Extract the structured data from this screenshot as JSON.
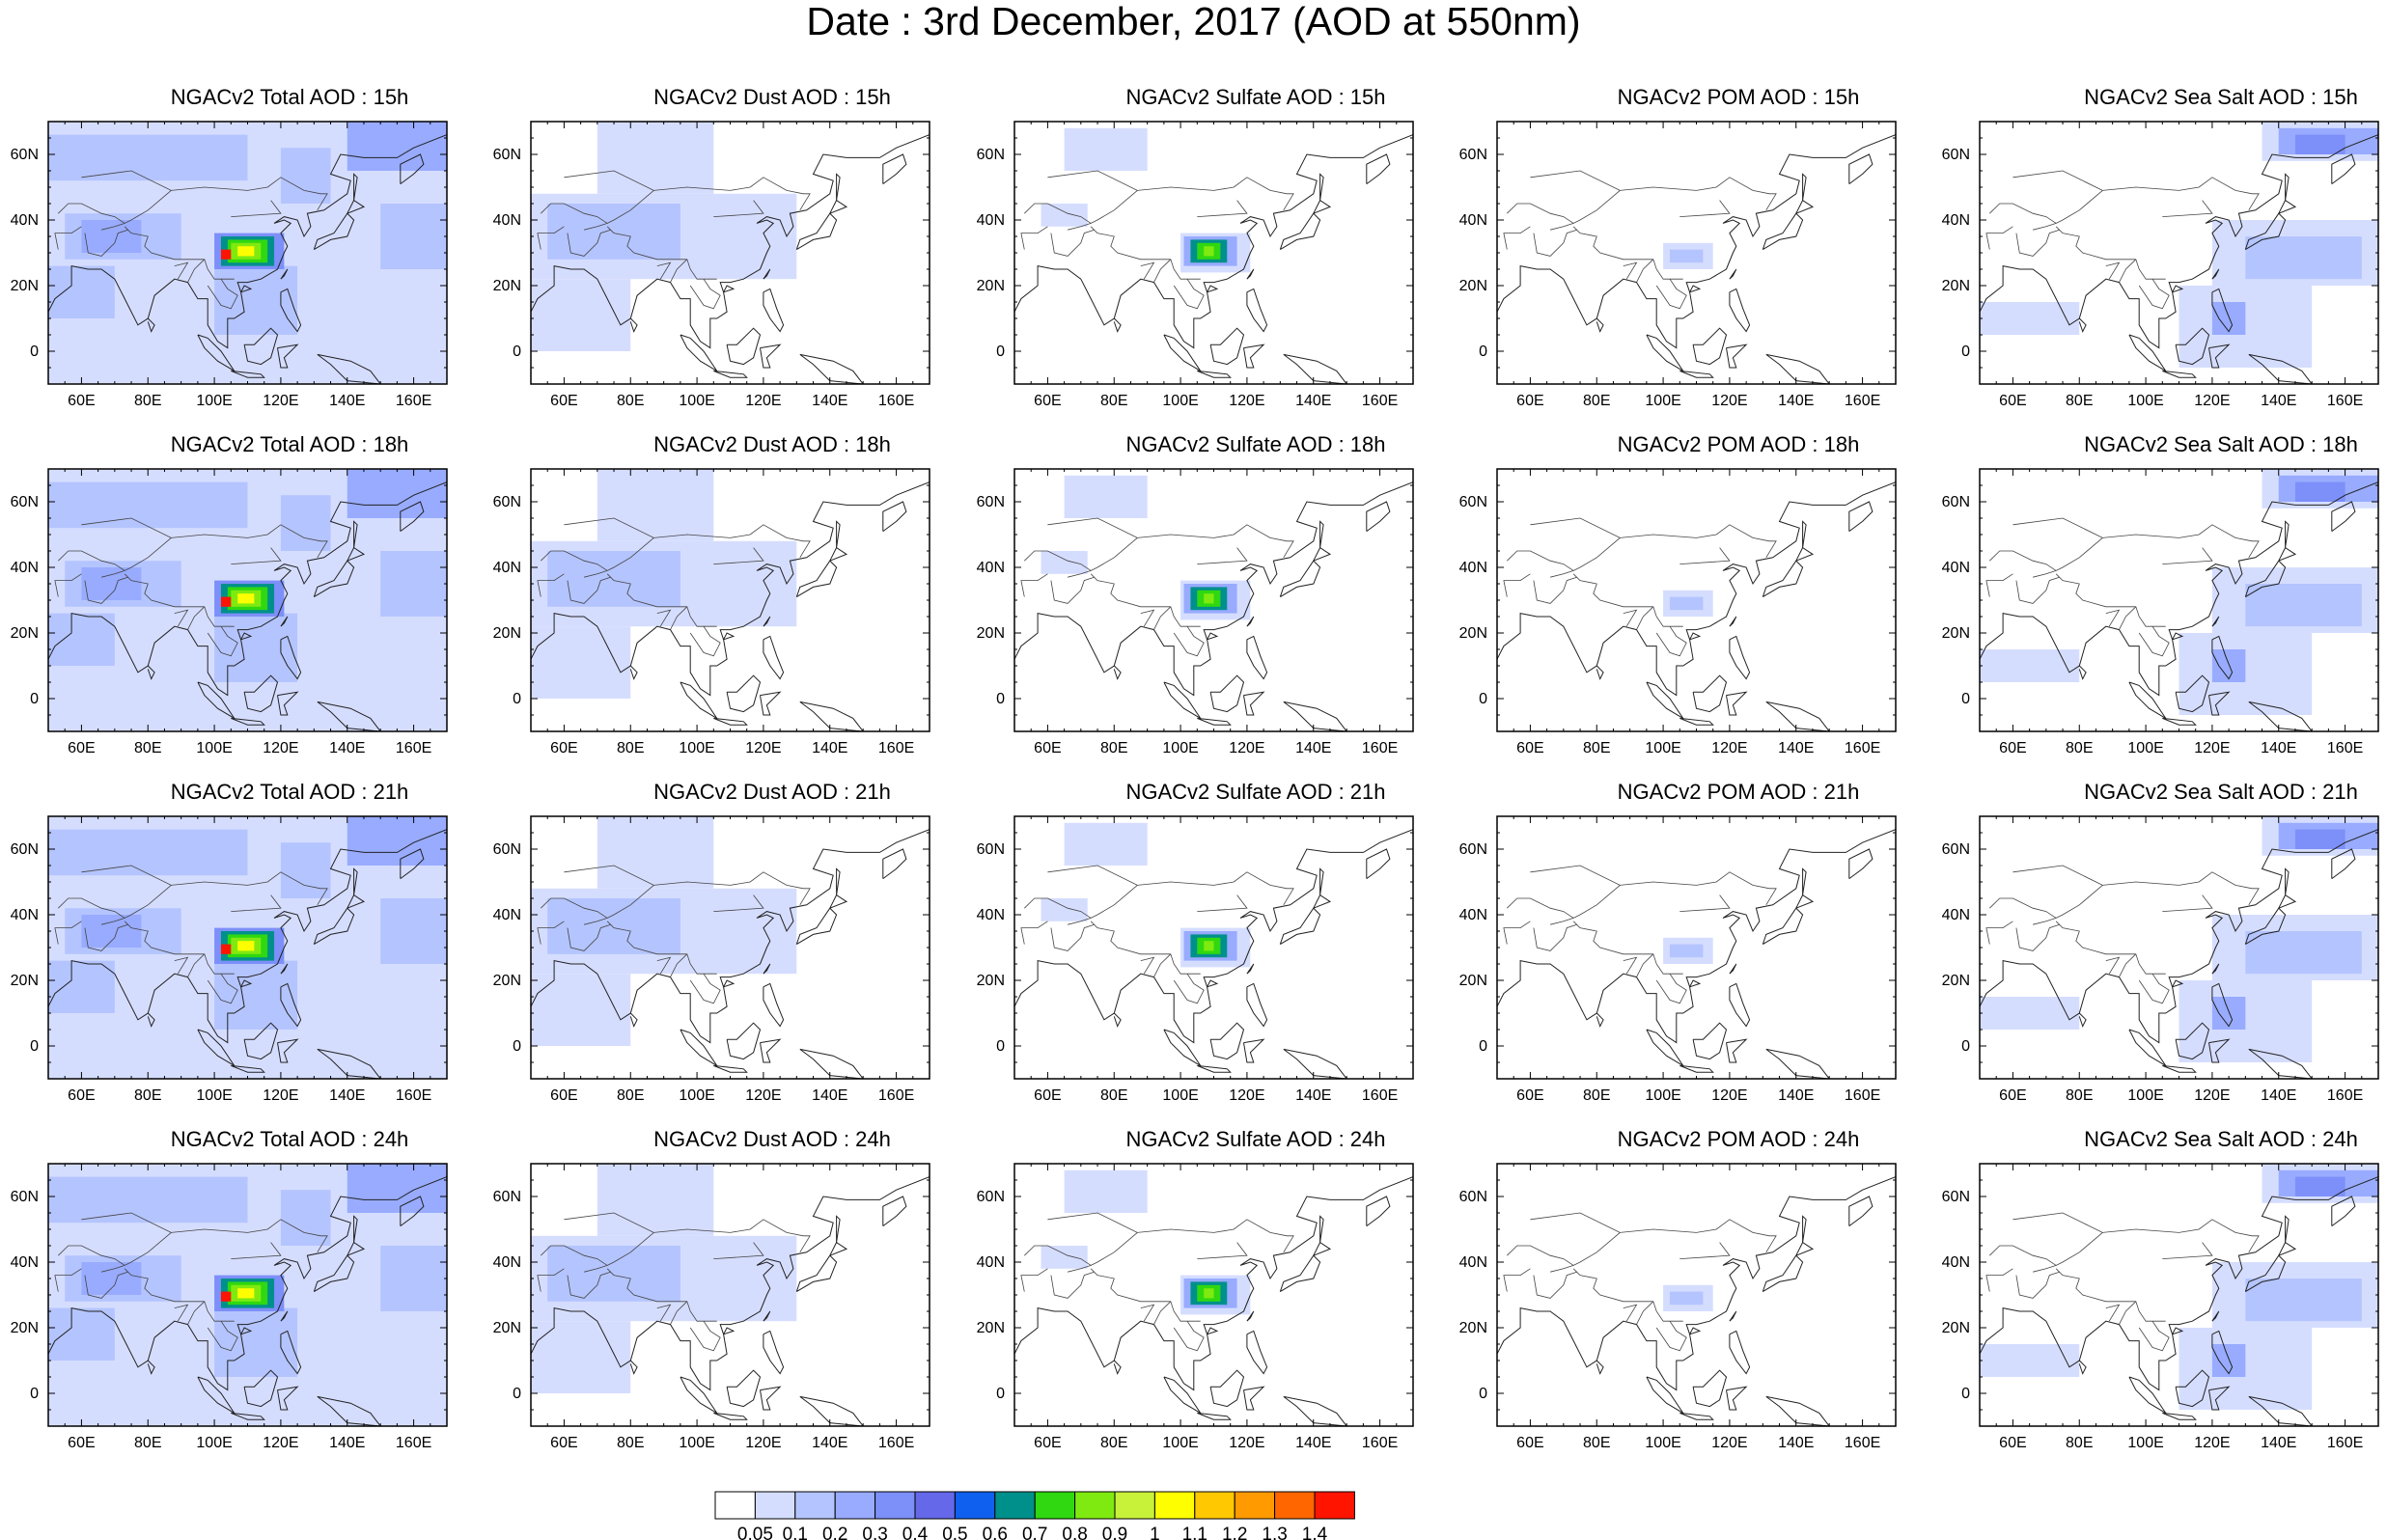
{
  "title": "Date : 3rd December, 2017 (AOD at 550nm)",
  "panel_rows": [
    [
      "NGACv2 Total AOD : 15h",
      "NGACv2 Dust AOD : 15h",
      "NGACv2 Sulfate AOD : 15h",
      "NGACv2 POM AOD : 15h",
      "NGACv2 Sea Salt AOD : 15h"
    ],
    [
      "NGACv2 Total AOD : 18h",
      "NGACv2 Dust AOD : 18h",
      "NGACv2 Sulfate AOD : 18h",
      "NGACv2 POM AOD : 18h",
      "NGACv2 Sea Salt AOD : 18h"
    ],
    [
      "NGACv2 Total AOD : 21h",
      "NGACv2 Dust AOD : 21h",
      "NGACv2 Sulfate AOD : 21h",
      "NGACv2 POM AOD : 21h",
      "NGACv2 Sea Salt AOD : 21h"
    ],
    [
      "NGACv2 Total AOD : 24h",
      "NGACv2 Dust AOD : 24h",
      "NGACv2 Sulfate AOD : 24h",
      "NGACv2 POM AOD : 24h",
      "NGACv2 Sea Salt  AOD : 24h"
    ]
  ],
  "map": {
    "lon_range": [
      50,
      170
    ],
    "lat_range": [
      -10,
      70
    ],
    "lon_ticks": [
      "60E",
      "80E",
      "100E",
      "120E",
      "140E",
      "160E"
    ],
    "lat_ticks": [
      "60N",
      "40N",
      "20N",
      "0"
    ]
  },
  "colorbar": {
    "labels": [
      "0.05",
      "0.1",
      "0.2",
      "0.3",
      "0.4",
      "0.5",
      "0.6",
      "0.7",
      "0.8",
      "0.9",
      "1",
      "1.1",
      "1.2",
      "1.3",
      "1.4"
    ],
    "colors": [
      "#ffffff",
      "#d5ddff",
      "#b4c4ff",
      "#98abff",
      "#7d8ff8",
      "#6468e9",
      "#1060f0",
      "#00908c",
      "#2fd810",
      "#7fea10",
      "#c8f23a",
      "#fffe00",
      "#ffc800",
      "#ff9a00",
      "#ff6600",
      "#ff1400"
    ]
  }
}
